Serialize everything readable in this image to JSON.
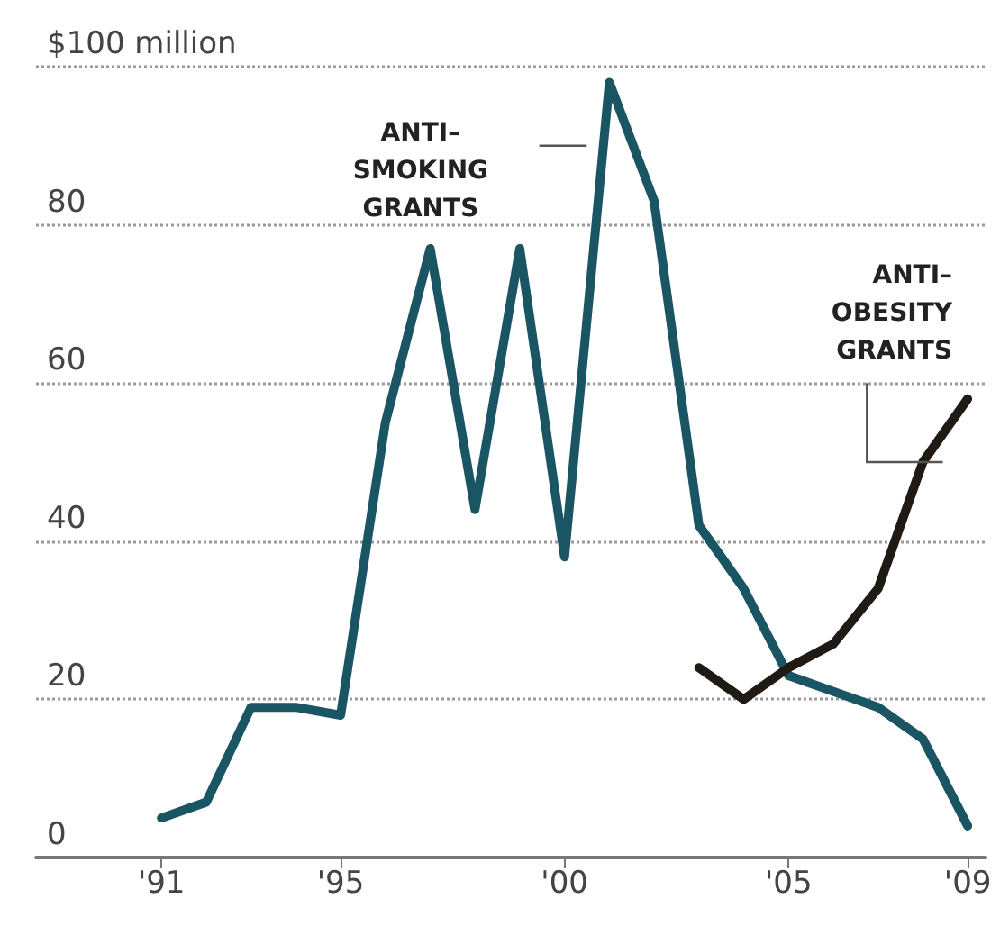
{
  "chart_data": {
    "type": "line",
    "x": [
      1991,
      1992,
      1993,
      1994,
      1995,
      1996,
      1997,
      1998,
      1999,
      2000,
      2001,
      2002,
      2003,
      2004,
      2005,
      2006,
      2007,
      2008,
      2009
    ],
    "series": [
      {
        "name": "ANTI–\nSMOKING\nGRANTS",
        "color": "#1a5563",
        "values": [
          5,
          7,
          19,
          19,
          18,
          55,
          77,
          44,
          77,
          38,
          98,
          83,
          42,
          34,
          23,
          21,
          19,
          15,
          4
        ]
      },
      {
        "name": "ANTI–\nOBESITY\nGRANTS",
        "color": "#1f1a14",
        "x": [
          2003,
          2004,
          2005,
          2006,
          2007,
          2008,
          2009
        ],
        "values": [
          24,
          20,
          24,
          27,
          34,
          50,
          58
        ]
      }
    ],
    "xlim": [
      1988.2,
      2009.4
    ],
    "ylim": [
      0,
      100
    ],
    "xticks": [
      {
        "value": 1991,
        "label": "'91"
      },
      {
        "value": 1995,
        "label": "'95"
      },
      {
        "value": 2000,
        "label": "'00"
      },
      {
        "value": 2005,
        "label": "'05"
      },
      {
        "value": 2009,
        "label": "'09"
      }
    ],
    "yticks": [
      0,
      20,
      40,
      60,
      80,
      {
        "value": 100,
        "label": "$100 million"
      }
    ],
    "grid": "y",
    "marker": "none",
    "line_style": "solid"
  }
}
